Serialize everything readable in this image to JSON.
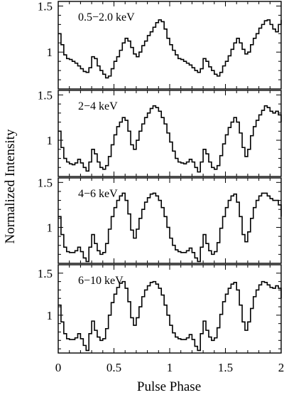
{
  "figure": {
    "xlabel": "Pulse Phase",
    "ylabel": "Normalized Intensity",
    "xtick_labels": [
      "0",
      "0.5",
      "1",
      "1.5",
      "2"
    ],
    "ytick_labels": [
      "1",
      "1.5"
    ]
  },
  "chart_data": [
    {
      "type": "line",
      "title": "0.5−2.0 keV",
      "xlim": [
        0,
        2
      ],
      "ylim": [
        0.6,
        1.55
      ],
      "series": [
        {
          "x": [
            0.0,
            0.025,
            0.05,
            0.075,
            0.1,
            0.125,
            0.15,
            0.175,
            0.2,
            0.225,
            0.25,
            0.275,
            0.3,
            0.325,
            0.35,
            0.375,
            0.4,
            0.425,
            0.45,
            0.475,
            0.5,
            0.525,
            0.55,
            0.575,
            0.6,
            0.625,
            0.65,
            0.675,
            0.7,
            0.725,
            0.75,
            0.775,
            0.8,
            0.825,
            0.85,
            0.875,
            0.9,
            0.925,
            0.95,
            0.975,
            1.0,
            1.025,
            1.05,
            1.075,
            1.1,
            1.125,
            1.15,
            1.175,
            1.2,
            1.225,
            1.25,
            1.275,
            1.3,
            1.325,
            1.35,
            1.375,
            1.4,
            1.425,
            1.45,
            1.475,
            1.5,
            1.525,
            1.55,
            1.575,
            1.6,
            1.625,
            1.65,
            1.675,
            1.7,
            1.725,
            1.75,
            1.775,
            1.8,
            1.825,
            1.85,
            1.875,
            1.9,
            1.925,
            1.95,
            1.975,
            2.0
          ],
          "y": [
            1.2,
            1.08,
            0.97,
            0.93,
            0.92,
            0.9,
            0.88,
            0.85,
            0.82,
            0.79,
            0.78,
            0.83,
            0.95,
            0.93,
            0.85,
            0.8,
            0.76,
            0.72,
            0.74,
            0.82,
            0.9,
            0.95,
            1.02,
            1.1,
            1.15,
            1.12,
            1.05,
            0.98,
            0.95,
            1.0,
            1.07,
            1.12,
            1.18,
            1.22,
            1.27,
            1.32,
            1.35,
            1.33,
            1.25,
            1.15,
            1.08,
            1.02,
            0.97,
            0.93,
            0.92,
            0.9,
            0.88,
            0.86,
            0.83,
            0.8,
            0.78,
            0.82,
            0.93,
            0.9,
            0.84,
            0.8,
            0.76,
            0.74,
            0.78,
            0.85,
            0.9,
            0.96,
            1.03,
            1.1,
            1.15,
            1.1,
            1.03,
            0.98,
            1.0,
            1.08,
            1.15,
            1.2,
            1.26,
            1.3,
            1.34,
            1.35,
            1.3,
            1.25,
            1.22,
            1.3,
            1.35
          ]
        }
      ]
    },
    {
      "type": "line",
      "title": "2−4 keV",
      "xlim": [
        0,
        2
      ],
      "ylim": [
        0.6,
        1.55
      ],
      "series": [
        {
          "x": [
            0.0,
            0.025,
            0.05,
            0.075,
            0.1,
            0.125,
            0.15,
            0.175,
            0.2,
            0.225,
            0.25,
            0.275,
            0.3,
            0.325,
            0.35,
            0.375,
            0.4,
            0.425,
            0.45,
            0.475,
            0.5,
            0.525,
            0.55,
            0.575,
            0.6,
            0.625,
            0.65,
            0.675,
            0.7,
            0.725,
            0.75,
            0.775,
            0.8,
            0.825,
            0.85,
            0.875,
            0.9,
            0.925,
            0.95,
            0.975,
            1.0,
            1.025,
            1.05,
            1.075,
            1.1,
            1.125,
            1.15,
            1.175,
            1.2,
            1.225,
            1.25,
            1.275,
            1.3,
            1.325,
            1.35,
            1.375,
            1.4,
            1.425,
            1.45,
            1.475,
            1.5,
            1.525,
            1.55,
            1.575,
            1.6,
            1.625,
            1.65,
            1.675,
            1.7,
            1.725,
            1.75,
            1.775,
            1.8,
            1.825,
            1.85,
            1.875,
            1.9,
            1.925,
            1.95,
            1.975,
            2.0
          ],
          "y": [
            1.1,
            0.92,
            0.8,
            0.76,
            0.74,
            0.73,
            0.75,
            0.79,
            0.75,
            0.7,
            0.66,
            0.76,
            0.9,
            0.85,
            0.76,
            0.7,
            0.68,
            0.72,
            0.82,
            0.95,
            1.06,
            1.15,
            1.2,
            1.25,
            1.22,
            1.1,
            0.95,
            0.9,
            1.0,
            1.1,
            1.18,
            1.25,
            1.3,
            1.35,
            1.38,
            1.36,
            1.32,
            1.25,
            1.18,
            1.08,
            0.98,
            0.88,
            0.8,
            0.76,
            0.75,
            0.74,
            0.76,
            0.79,
            0.76,
            0.7,
            0.65,
            0.76,
            0.9,
            0.85,
            0.76,
            0.7,
            0.68,
            0.72,
            0.83,
            0.96,
            1.06,
            1.14,
            1.2,
            1.25,
            1.2,
            1.08,
            0.92,
            0.82,
            0.9,
            1.05,
            1.15,
            1.22,
            1.28,
            1.33,
            1.38,
            1.36,
            1.32,
            1.3,
            1.32,
            1.28,
            1.2
          ]
        }
      ]
    },
    {
      "type": "line",
      "title": "4−6 keV",
      "xlim": [
        0,
        2
      ],
      "ylim": [
        0.6,
        1.55
      ],
      "series": [
        {
          "x": [
            0.0,
            0.025,
            0.05,
            0.075,
            0.1,
            0.125,
            0.15,
            0.175,
            0.2,
            0.225,
            0.25,
            0.275,
            0.3,
            0.325,
            0.35,
            0.375,
            0.4,
            0.425,
            0.45,
            0.475,
            0.5,
            0.525,
            0.55,
            0.575,
            0.6,
            0.625,
            0.65,
            0.675,
            0.7,
            0.725,
            0.75,
            0.775,
            0.8,
            0.825,
            0.85,
            0.875,
            0.9,
            0.925,
            0.95,
            0.975,
            1.0,
            1.025,
            1.05,
            1.075,
            1.1,
            1.125,
            1.15,
            1.175,
            1.2,
            1.225,
            1.25,
            1.275,
            1.3,
            1.325,
            1.35,
            1.375,
            1.4,
            1.425,
            1.45,
            1.475,
            1.5,
            1.525,
            1.55,
            1.575,
            1.6,
            1.625,
            1.65,
            1.675,
            1.7,
            1.725,
            1.75,
            1.775,
            1.8,
            1.825,
            1.85,
            1.875,
            1.9,
            1.925,
            1.95,
            1.975,
            2.0
          ],
          "y": [
            1.12,
            0.92,
            0.78,
            0.73,
            0.72,
            0.72,
            0.74,
            0.78,
            0.73,
            0.66,
            0.62,
            0.78,
            0.92,
            0.82,
            0.74,
            0.7,
            0.72,
            0.82,
            0.98,
            1.12,
            1.22,
            1.3,
            1.35,
            1.38,
            1.3,
            1.15,
            0.97,
            0.88,
            0.98,
            1.1,
            1.2,
            1.28,
            1.33,
            1.37,
            1.38,
            1.35,
            1.3,
            1.22,
            1.12,
            1.0,
            0.88,
            0.8,
            0.75,
            0.73,
            0.72,
            0.72,
            0.74,
            0.77,
            0.72,
            0.66,
            0.62,
            0.78,
            0.92,
            0.82,
            0.74,
            0.7,
            0.73,
            0.83,
            0.99,
            1.12,
            1.22,
            1.3,
            1.35,
            1.37,
            1.28,
            1.12,
            0.92,
            0.84,
            0.95,
            1.1,
            1.22,
            1.3,
            1.35,
            1.38,
            1.38,
            1.35,
            1.32,
            1.3,
            1.3,
            1.25,
            1.12
          ]
        }
      ]
    },
    {
      "type": "line",
      "title": "6−10 keV",
      "xlim": [
        0,
        2
      ],
      "ylim": [
        0.55,
        1.6
      ],
      "series": [
        {
          "x": [
            0.0,
            0.025,
            0.05,
            0.075,
            0.1,
            0.125,
            0.15,
            0.175,
            0.2,
            0.225,
            0.25,
            0.275,
            0.3,
            0.325,
            0.35,
            0.375,
            0.4,
            0.425,
            0.45,
            0.475,
            0.5,
            0.525,
            0.55,
            0.575,
            0.6,
            0.625,
            0.65,
            0.675,
            0.7,
            0.725,
            0.75,
            0.775,
            0.8,
            0.825,
            0.85,
            0.875,
            0.9,
            0.925,
            0.95,
            0.975,
            1.0,
            1.025,
            1.05,
            1.075,
            1.1,
            1.125,
            1.15,
            1.175,
            1.2,
            1.225,
            1.25,
            1.275,
            1.3,
            1.325,
            1.35,
            1.375,
            1.4,
            1.425,
            1.45,
            1.475,
            1.5,
            1.525,
            1.55,
            1.575,
            1.6,
            1.625,
            1.65,
            1.675,
            1.7,
            1.725,
            1.75,
            1.775,
            1.8,
            1.825,
            1.85,
            1.875,
            1.9,
            1.925,
            1.95,
            1.975,
            2.0
          ],
          "y": [
            1.12,
            0.92,
            0.78,
            0.72,
            0.71,
            0.71,
            0.73,
            0.78,
            0.72,
            0.64,
            0.58,
            0.78,
            0.93,
            0.82,
            0.74,
            0.7,
            0.72,
            0.84,
            1.0,
            1.15,
            1.25,
            1.33,
            1.38,
            1.4,
            1.32,
            1.16,
            0.97,
            0.88,
            0.97,
            1.1,
            1.22,
            1.3,
            1.35,
            1.39,
            1.4,
            1.37,
            1.32,
            1.24,
            1.12,
            1.0,
            0.88,
            0.79,
            0.74,
            0.72,
            0.71,
            0.71,
            0.73,
            0.77,
            0.71,
            0.63,
            0.58,
            0.78,
            0.93,
            0.82,
            0.74,
            0.7,
            0.73,
            0.85,
            1.01,
            1.16,
            1.25,
            1.32,
            1.37,
            1.39,
            1.3,
            1.12,
            0.92,
            0.82,
            0.92,
            1.08,
            1.22,
            1.3,
            1.36,
            1.4,
            1.39,
            1.36,
            1.33,
            1.32,
            1.35,
            1.32,
            1.2
          ]
        }
      ]
    }
  ]
}
